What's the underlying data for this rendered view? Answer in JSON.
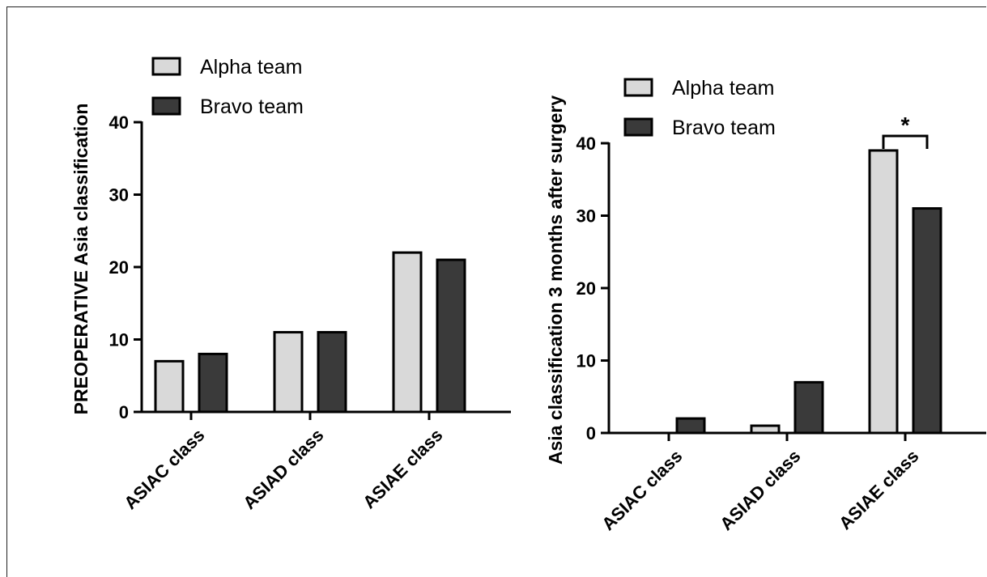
{
  "colors": {
    "series_a": "#d9d9d9",
    "series_b": "#3a3a3a",
    "stroke": "#000000"
  },
  "chart_data": [
    {
      "type": "bar",
      "categories": [
        "ASIAC class",
        "ASIAD class",
        "ASIAE class"
      ],
      "series": [
        {
          "name": "Alpha team",
          "values": [
            7,
            11,
            22
          ]
        },
        {
          "name": "Bravo team",
          "values": [
            8,
            11,
            21
          ]
        }
      ],
      "ylabel": "PREOPERATIVE Asia classification",
      "xlabel": "",
      "ylim": [
        0,
        40
      ],
      "yticks": [
        0,
        10,
        20,
        30,
        40
      ],
      "legend": "top-left",
      "grid": false
    },
    {
      "type": "bar",
      "categories": [
        "ASIAC class",
        "ASIAD class",
        "ASIAE class"
      ],
      "series": [
        {
          "name": "Alpha team",
          "values": [
            0,
            1,
            39
          ]
        },
        {
          "name": "Bravo team",
          "values": [
            2,
            7,
            31
          ]
        }
      ],
      "ylabel": "Asia classification 3 months after surgery",
      "xlabel": "",
      "ylim": [
        0,
        40
      ],
      "yticks": [
        0,
        10,
        20,
        30,
        40
      ],
      "legend": "top-left",
      "grid": false,
      "annotations": [
        {
          "category": "ASIAE class",
          "text": "*"
        }
      ]
    }
  ]
}
